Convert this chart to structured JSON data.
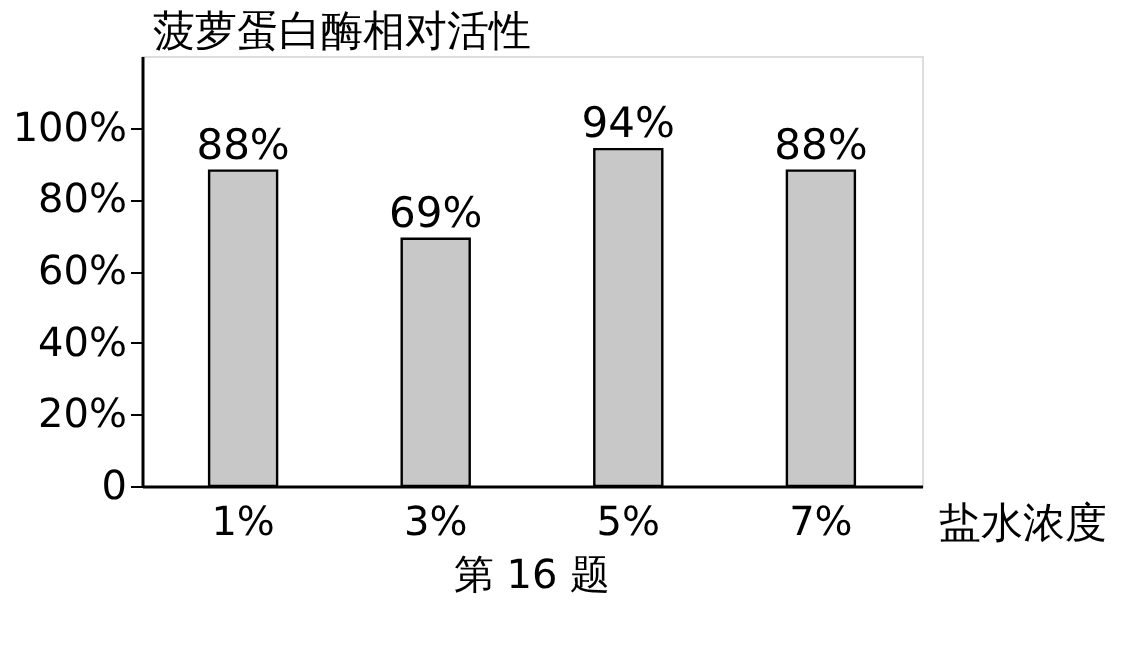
{
  "chart_data": {
    "type": "bar",
    "ylabel": "菠萝蛋白酶相对活性",
    "xlabel": "盐水浓度",
    "categories": [
      "1%",
      "3%",
      "5%",
      "7%"
    ],
    "values": [
      88,
      69,
      94,
      88
    ],
    "value_labels": [
      "88%",
      "69%",
      "94%",
      "88%"
    ],
    "color": "#c8c8c8",
    "ylim": [
      0,
      120
    ],
    "yticks": [
      0,
      {
        "value": 20,
        "label": "20%"
      },
      {
        "value": 40,
        "label": "40%"
      },
      {
        "value": 60,
        "label": "60%"
      },
      {
        "value": 80,
        "label": "80%"
      },
      {
        "value": 100,
        "label": "100%"
      }
    ],
    "grid": false,
    "annotations": [
      "第 16 题"
    ]
  }
}
